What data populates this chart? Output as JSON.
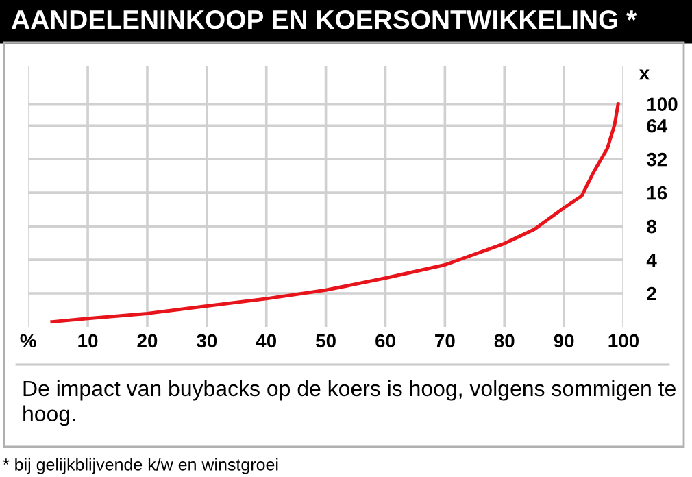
{
  "chart_data": {
    "type": "line",
    "title": "AANDELENINKOOP EN KOERSONTWIKKELING *",
    "subtitle": "De impact van buybacks op de koers is hoog, volgens sommigen te hoog.",
    "ylabel": "x",
    "annotations": [
      "* bij gelijkblijvende k/w en winstgroei"
    ],
    "x": [
      4,
      10,
      20,
      30,
      40,
      50,
      60,
      70,
      80,
      85,
      90,
      93,
      95,
      97.3,
      98.5,
      99.1
    ],
    "series": [
      {
        "color": "#e8141c",
        "values": [
          1.11,
          1.19,
          1.32,
          1.54,
          1.79,
          2.14,
          2.74,
          3.6,
          5.6,
          7.5,
          11.7,
          15,
          24.6,
          40,
          65,
          100
        ]
      }
    ],
    "xlim": [
      0,
      100
    ],
    "xticks": [
      {
        "value": 0,
        "label": "%"
      },
      10,
      20,
      30,
      40,
      50,
      60,
      70,
      80,
      90,
      100
    ],
    "log": "y",
    "ylim": [
      1,
      220
    ],
    "yticks": [
      2,
      4,
      8,
      16,
      32,
      64,
      100
    ],
    "grid": true,
    "marker": "none",
    "line_style": "solid"
  }
}
